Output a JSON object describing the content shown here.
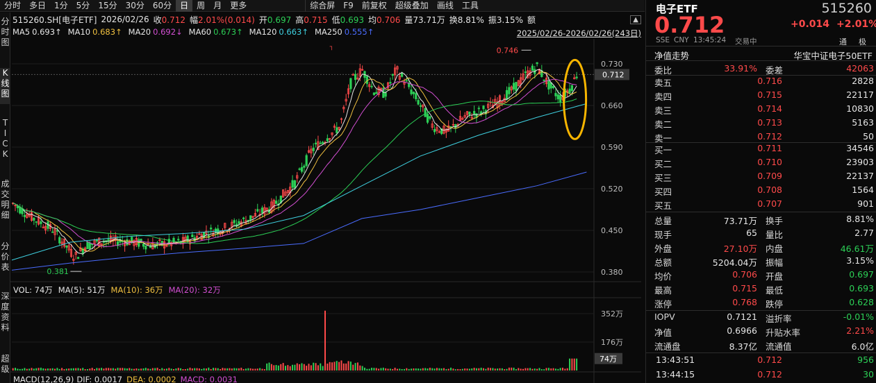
{
  "tabs": [
    "分时",
    "多日",
    "1分",
    "5分",
    "15分",
    "30分",
    "60分",
    "日",
    "周",
    "月",
    "更多",
    "综合屏",
    "F9",
    "前复权",
    "超级叠加",
    "画线",
    "工具"
  ],
  "left_nav": [
    {
      "label": "分\n时\n图",
      "active": false
    },
    {
      "label": "K\n线\n图",
      "active": true
    },
    {
      "label": "T\nI\nC\nK",
      "active": false
    },
    {
      "label": "成\n交\n明\n细",
      "active": false
    },
    {
      "label": "分\n价\n表",
      "active": false
    },
    {
      "label": "深\n度\n资\n料",
      "active": false
    },
    {
      "label": "超\n级",
      "active": false
    }
  ],
  "info": {
    "code": "515260.SH[电子ETF]",
    "date": "2026/02/26",
    "close_label": "收",
    "close": "0.712",
    "chg_label": "幅",
    "chg": "2.01%(0.014)",
    "open_label": "开",
    "open": "0.697",
    "high_label": "高",
    "high": "0.715",
    "low_label": "低",
    "low": "0.693",
    "avg_label": "均",
    "avg": "0.706",
    "vol_label": "量",
    "vol": "73.71万",
    "turn_label": "换",
    "turn": "8.81%",
    "amp_label": "振",
    "amp": "3.15%",
    "amt_label": "额"
  },
  "ma": [
    {
      "label": "MA5",
      "value": "0.693↑",
      "color": "#e6e6e6"
    },
    {
      "label": "MA10",
      "value": "0.683↑",
      "color": "#f0c040"
    },
    {
      "label": "MA20",
      "value": "0.692↓",
      "color": "#d24fd2"
    },
    {
      "label": "MA60",
      "value": "0.673↑",
      "color": "#2ccf56"
    },
    {
      "label": "MA120",
      "value": "0.663↑",
      "color": "#3fd0e0"
    },
    {
      "label": "MA250",
      "value": "0.555↑",
      "color": "#4a6cff"
    }
  ],
  "range": "2025/02/26-2026/02/26(243日)",
  "price_axis": [
    "0.730",
    "0.660",
    "0.590",
    "0.520",
    "0.450",
    "0.380"
  ],
  "price_tag": "0.712",
  "max_label": "0.746",
  "min_label": "0.381",
  "vol_bar": {
    "label": "VOL: 74万",
    "ma5": "MA(5): 51万",
    "ma10": "MA(10): 36万",
    "ma20": "MA(20): 32万"
  },
  "vol_axis": [
    "352万",
    "176万"
  ],
  "vol_tag": "74万",
  "macd_bar": {
    "label": "MACD(12,26,9)",
    "dif": "DIF: 0.0017",
    "dea": "DEA: 0.0002",
    "macd": "MACD: 0.0031"
  },
  "quote": {
    "name": "电子ETF",
    "code": "515260",
    "price": "0.712",
    "change": "+0.014",
    "pct": "+2.01%",
    "market": "SSE",
    "currency": "CNY",
    "time": "13:45:24",
    "status": "交易中",
    "tong": "通",
    "ji": "极",
    "nav_trend": "净值走势",
    "index": "华宝中证电子50ETF"
  },
  "ratio": {
    "wb_label": "委比",
    "wb": "33.91%",
    "wc_label": "委差",
    "wc": "42063"
  },
  "asks": [
    {
      "label": "卖五",
      "price": "0.716",
      "vol": "2828"
    },
    {
      "label": "卖四",
      "price": "0.715",
      "vol": "22117"
    },
    {
      "label": "卖三",
      "price": "0.714",
      "vol": "10830"
    },
    {
      "label": "卖二",
      "price": "0.713",
      "vol": "5163"
    },
    {
      "label": "卖一",
      "price": "0.712",
      "vol": "50"
    }
  ],
  "bids": [
    {
      "label": "买一",
      "price": "0.711",
      "vol": "34546"
    },
    {
      "label": "买二",
      "price": "0.710",
      "vol": "23903"
    },
    {
      "label": "买三",
      "price": "0.709",
      "vol": "22137"
    },
    {
      "label": "买四",
      "price": "0.708",
      "vol": "1564"
    },
    {
      "label": "买五",
      "price": "0.707",
      "vol": "901"
    }
  ],
  "stats": [
    {
      "l1": "总量",
      "v1": "73.71万",
      "c1": "#e6e6e6",
      "l2": "换手",
      "v2": "8.81%",
      "c2": "#e6e6e6"
    },
    {
      "l1": "现手",
      "v1": "65",
      "c1": "#e6e6e6",
      "l2": "量比",
      "v2": "2.77",
      "c2": "#e6e6e6"
    },
    {
      "l1": "外盘",
      "v1": "27.10万",
      "c1": "#ff4a4a",
      "l2": "内盘",
      "v2": "46.61万",
      "c2": "#2ccf56"
    },
    {
      "l1": "总额",
      "v1": "5204.04万",
      "c1": "#e6e6e6",
      "l2": "振幅",
      "v2": "3.15%",
      "c2": "#e6e6e6"
    },
    {
      "l1": "均价",
      "v1": "0.706",
      "c1": "#ff4a4a",
      "l2": "开盘",
      "v2": "0.697",
      "c2": "#2ccf56"
    },
    {
      "l1": "最高",
      "v1": "0.715",
      "c1": "#ff4a4a",
      "l2": "最低",
      "v2": "0.693",
      "c2": "#2ccf56"
    },
    {
      "l1": "涨停",
      "v1": "0.768",
      "c1": "#ff4a4a",
      "l2": "跌停",
      "v2": "0.628",
      "c2": "#2ccf56"
    }
  ],
  "stats2": [
    {
      "l1": "IOPV",
      "v1": "0.7121",
      "c1": "#e6e6e6",
      "l2": "溢折率",
      "v2": "-0.01%",
      "c2": "#2ccf56"
    },
    {
      "l1": "净值",
      "v1": "0.6966",
      "c1": "#e6e6e6",
      "l2": "升贴水率",
      "v2": "2.21%",
      "c2": "#ff4a4a"
    },
    {
      "l1": "流通盘",
      "v1": "8.37亿",
      "c1": "#e6e6e6",
      "l2": "流通值",
      "v2": "6.0亿",
      "c2": "#e6e6e6"
    }
  ],
  "ticks": [
    {
      "time": "13:43:51",
      "price": "0.712",
      "vol": "956",
      "vc": "#2ccf56"
    },
    {
      "time": "13:44:15",
      "price": "0.712",
      "vol": "30",
      "vc": "#2ccf56"
    }
  ],
  "colors": {
    "up": "#ff4a4a",
    "down": "#2ccf56",
    "highlight": "#f7b500"
  }
}
